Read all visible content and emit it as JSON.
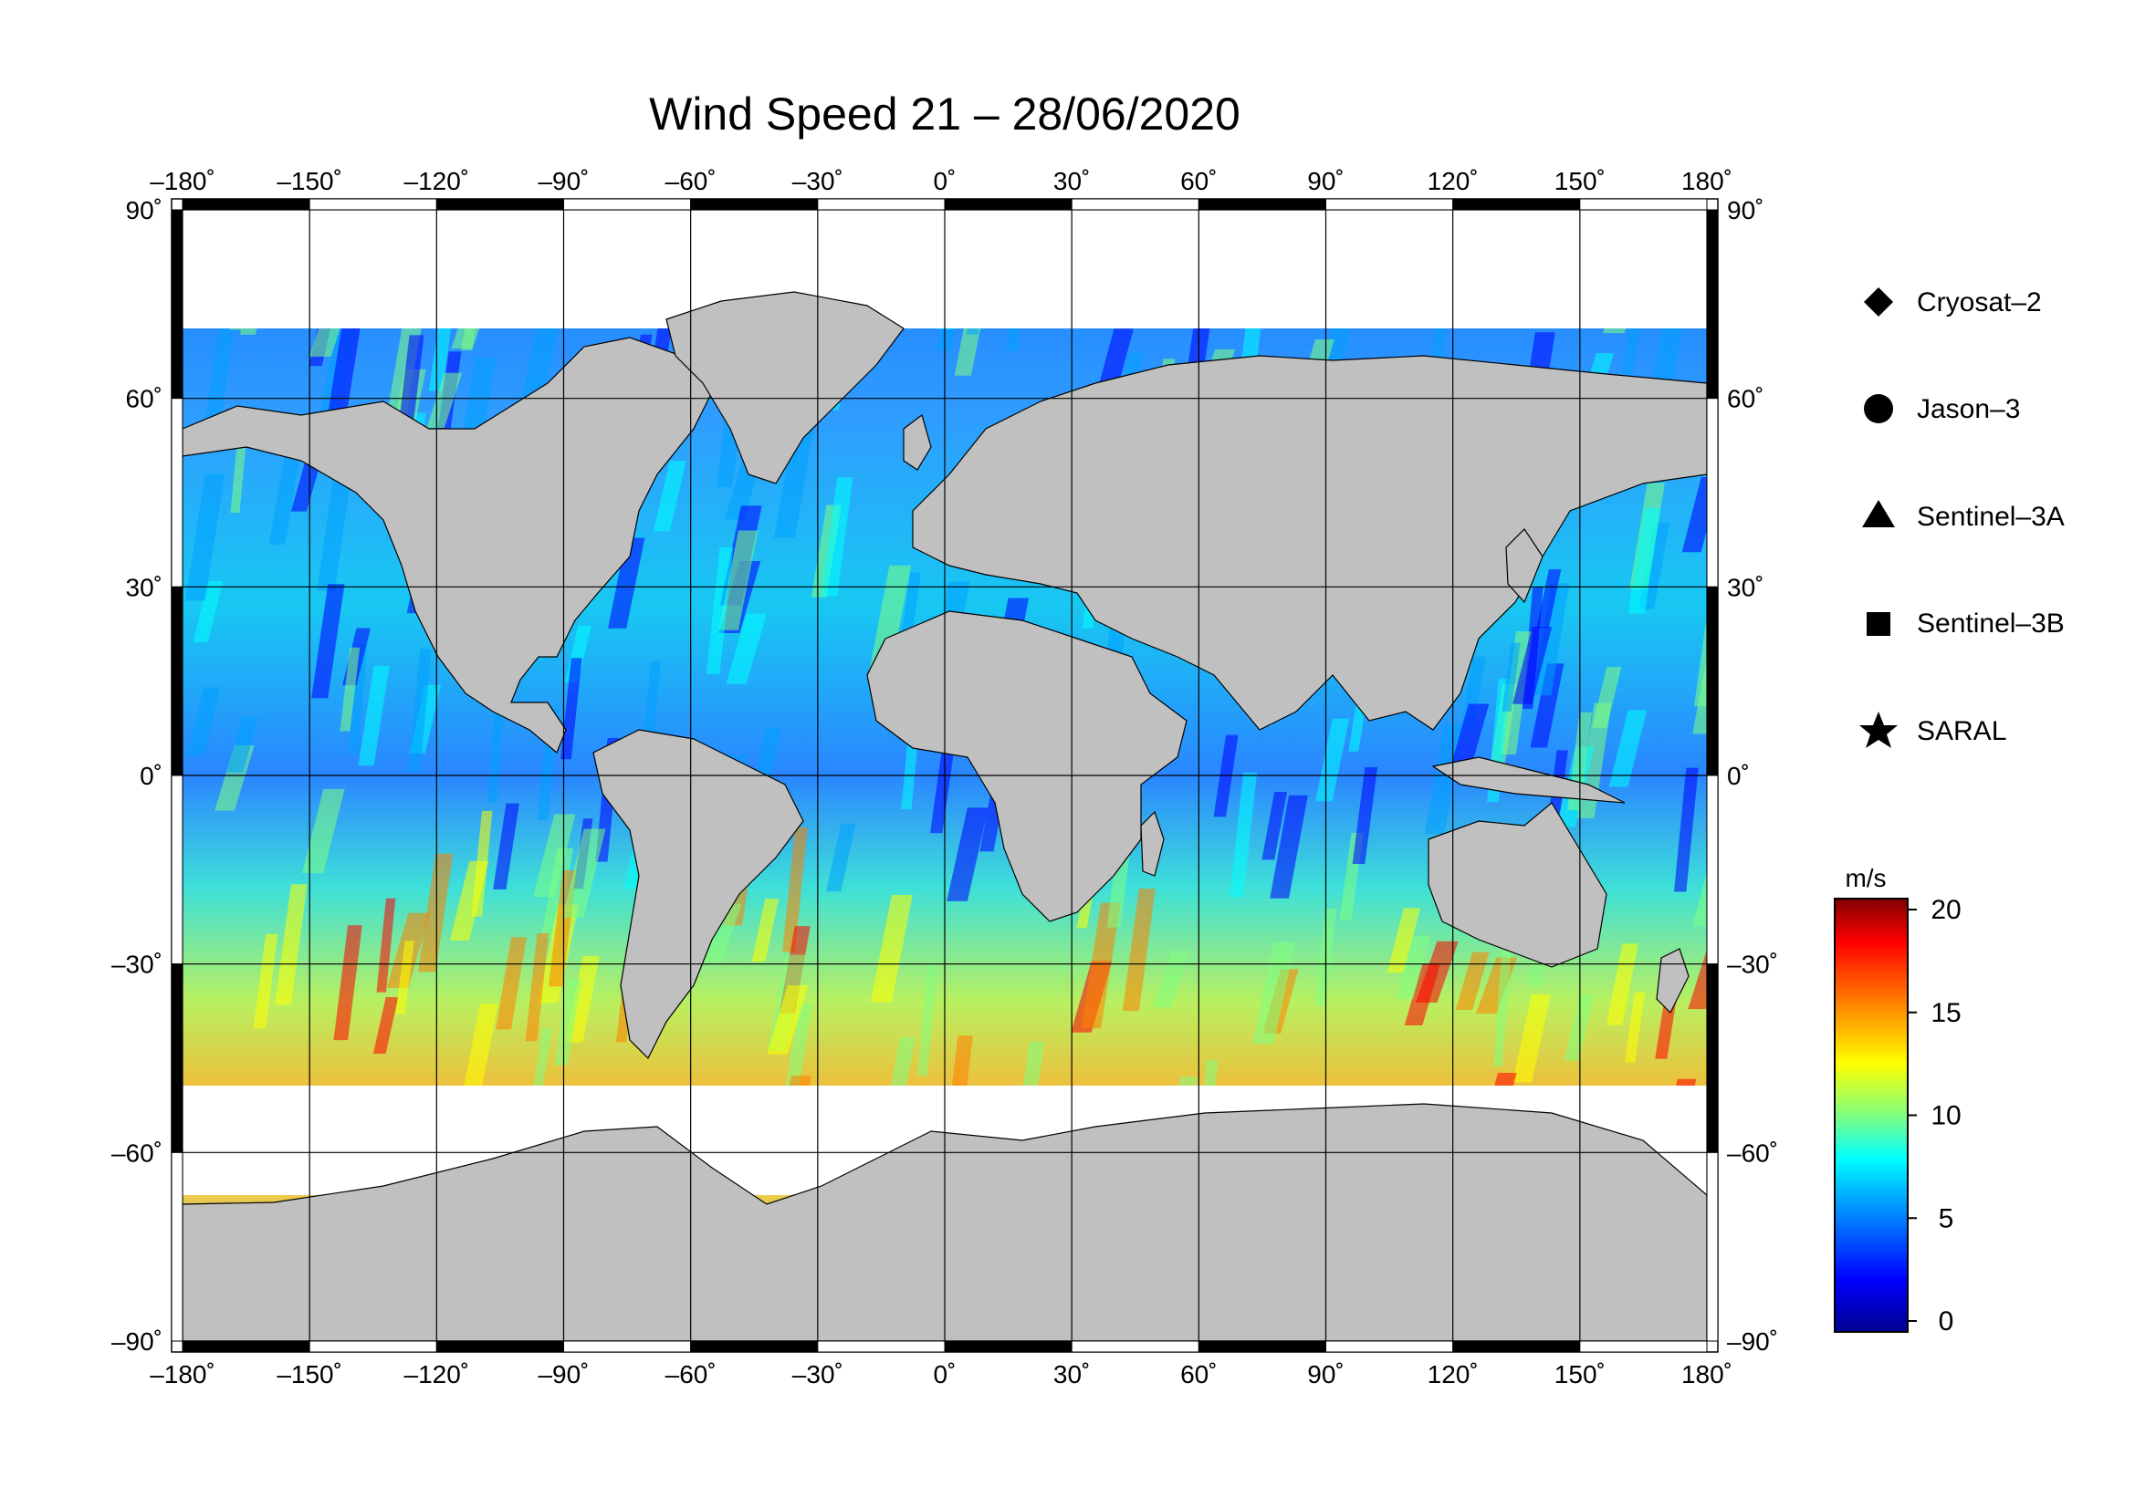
{
  "title": "Wind Speed 21 – 28/06/2020",
  "map": {
    "lon_ticks": [
      "–180˚",
      "–150˚",
      "–120˚",
      "–90˚",
      "–60˚",
      "–30˚",
      "0˚",
      "30˚",
      "60˚",
      "90˚",
      "120˚",
      "150˚",
      "180˚"
    ],
    "lat_ticks": [
      "90˚",
      "60˚",
      "30˚",
      "0˚",
      "–30˚",
      "–60˚",
      "–90˚"
    ],
    "lon_range": [
      -180,
      180
    ],
    "lat_range": [
      -90,
      90
    ],
    "land_color": "#c0c0c0",
    "ice_color": "#ffffff",
    "grid": true
  },
  "legend": {
    "items": [
      {
        "label": "Cryosat–2",
        "symbol": "diamond"
      },
      {
        "label": "Jason–3",
        "symbol": "circle"
      },
      {
        "label": "Sentinel–3A",
        "symbol": "triangle"
      },
      {
        "label": "Sentinel–3B",
        "symbol": "square"
      },
      {
        "label": "SARAL",
        "symbol": "star"
      }
    ]
  },
  "colorbar": {
    "unit": "m/s",
    "min": 0,
    "max": 20,
    "ticks": [
      "20",
      "15",
      "10",
      "5",
      "0"
    ],
    "tick_values": [
      20,
      15,
      10,
      5,
      0
    ],
    "colors": [
      "#00008f",
      "#0000ff",
      "#00a0ff",
      "#00ffff",
      "#80ff80",
      "#ffff00",
      "#ff8000",
      "#ff0000",
      "#800000"
    ]
  }
}
